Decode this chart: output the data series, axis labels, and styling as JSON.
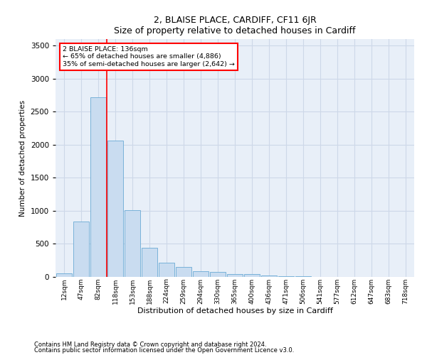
{
  "title": "2, BLAISE PLACE, CARDIFF, CF11 6JR",
  "subtitle": "Size of property relative to detached houses in Cardiff",
  "xlabel": "Distribution of detached houses by size in Cardiff",
  "ylabel": "Number of detached properties",
  "footnote1": "Contains HM Land Registry data © Crown copyright and database right 2024.",
  "footnote2": "Contains public sector information licensed under the Open Government Licence v3.0.",
  "bar_color": "#c9dcf0",
  "bar_edge_color": "#6aaad4",
  "grid_color": "#cdd8e8",
  "background_color": "#e8eff8",
  "categories": [
    "12sqm",
    "47sqm",
    "82sqm",
    "118sqm",
    "153sqm",
    "188sqm",
    "224sqm",
    "259sqm",
    "294sqm",
    "330sqm",
    "365sqm",
    "400sqm",
    "436sqm",
    "471sqm",
    "506sqm",
    "541sqm",
    "577sqm",
    "612sqm",
    "647sqm",
    "683sqm",
    "718sqm"
  ],
  "values": [
    55,
    840,
    2720,
    2060,
    1010,
    440,
    215,
    150,
    90,
    70,
    45,
    40,
    25,
    15,
    10,
    5,
    5,
    3,
    2,
    1,
    1
  ],
  "property_line_index": 3,
  "annotation_line1": "2 BLAISE PLACE: 136sqm",
  "annotation_line2": "← 65% of detached houses are smaller (4,886)",
  "annotation_line3": "35% of semi-detached houses are larger (2,642) →",
  "ylim": [
    0,
    3600
  ],
  "yticks": [
    0,
    500,
    1000,
    1500,
    2000,
    2500,
    3000,
    3500
  ]
}
